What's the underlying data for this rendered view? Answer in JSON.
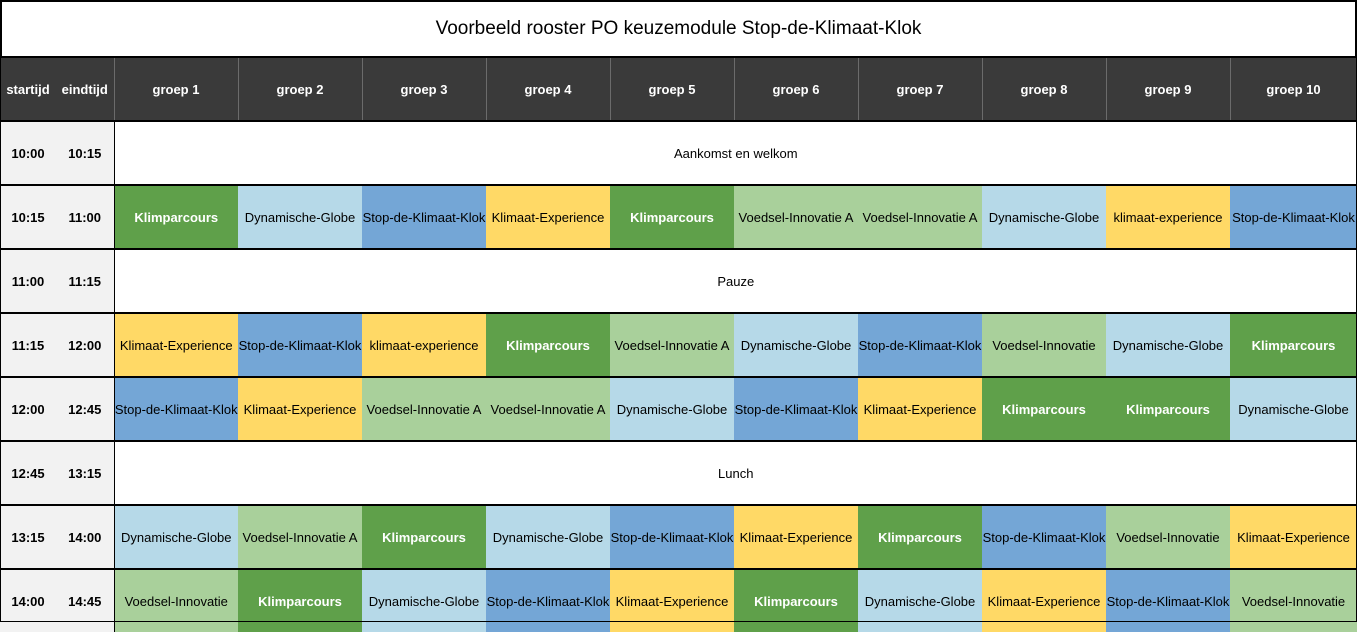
{
  "title": "Voorbeeld rooster PO keuzemodule  Stop-de-Klimaat-Klok",
  "colors": {
    "header_bg": "#3a3a3a",
    "time_bg": "#f2f2f2",
    "Klimparcours": "#5fa04a",
    "Dynamische-Globe": "#b6d9e8",
    "Stop-de-Klimaat-Klok": "#74a6d6",
    "Klimaat-Experience": "#ffd966",
    "Voedsel-Innovatie": "#a9d09b"
  },
  "header": {
    "start": "startijd",
    "end": "eindtijd",
    "groups": [
      "groep 1",
      "groep 2",
      "groep 3",
      "groep 4",
      "groep 5",
      "groep 6",
      "groep 7",
      "groep 8",
      "groep 9",
      "groep 10"
    ]
  },
  "rows": [
    {
      "start": "10:00",
      "end": "10:15",
      "span": "Aankomst en welkom"
    },
    {
      "start": "10:15",
      "end": "11:00",
      "cells": [
        {
          "text": "Klimparcours",
          "kind": "klim"
        },
        {
          "text": "Dynamische-Globe",
          "kind": "globe"
        },
        {
          "text": "Stop-de-Klimaat-Klok",
          "kind": "stop"
        },
        {
          "text": "Klimaat-Experience",
          "kind": "exp"
        },
        {
          "text": "Klimparcours",
          "kind": "klim"
        },
        {
          "text": "Voedsel-Innovatie  A",
          "kind": "voed"
        },
        {
          "text": "Voedsel-Innovatie  A",
          "kind": "voed"
        },
        {
          "text": "Dynamische-Globe",
          "kind": "globe"
        },
        {
          "text": "klimaat-experience",
          "kind": "exp"
        },
        {
          "text": "Stop-de-Klimaat-Klok",
          "kind": "stop"
        }
      ]
    },
    {
      "start": "11:00",
      "end": "11:15",
      "span": "Pauze"
    },
    {
      "start": "11:15",
      "end": "12:00",
      "cells": [
        {
          "text": "Klimaat-Experience",
          "kind": "exp"
        },
        {
          "text": "Stop-de-Klimaat-Klok",
          "kind": "stop"
        },
        {
          "text": "klimaat-experience",
          "kind": "exp"
        },
        {
          "text": "Klimparcours",
          "kind": "klim"
        },
        {
          "text": "Voedsel-Innovatie A",
          "kind": "voed"
        },
        {
          "text": "Dynamische-Globe",
          "kind": "globe"
        },
        {
          "text": "Stop-de-Klimaat-Klok",
          "kind": "stop"
        },
        {
          "text": "Voedsel-Innovatie",
          "kind": "voed"
        },
        {
          "text": "Dynamische-Globe",
          "kind": "globe"
        },
        {
          "text": "Klimparcours",
          "kind": "klim"
        }
      ]
    },
    {
      "start": "12:00",
      "end": "12:45",
      "cells": [
        {
          "text": "Stop-de-Klimaat-Klok",
          "kind": "stop"
        },
        {
          "text": "Klimaat-Experience",
          "kind": "exp"
        },
        {
          "text": "Voedsel-Innovatie A",
          "kind": "voed"
        },
        {
          "text": "Voedsel-Innovatie A",
          "kind": "voed"
        },
        {
          "text": "Dynamische-Globe",
          "kind": "globe"
        },
        {
          "text": "Stop-de-Klimaat-Klok",
          "kind": "stop"
        },
        {
          "text": "Klimaat-Experience",
          "kind": "exp"
        },
        {
          "text": "Klimparcours",
          "kind": "klim"
        },
        {
          "text": "Klimparcours",
          "kind": "klim"
        },
        {
          "text": "Dynamische-Globe",
          "kind": "globe"
        }
      ]
    },
    {
      "start": "12:45",
      "end": "13:15",
      "span": "Lunch"
    },
    {
      "start": "13:15",
      "end": "14:00",
      "cells": [
        {
          "text": "Dynamische-Globe",
          "kind": "globe"
        },
        {
          "text": "Voedsel-Innovatie A",
          "kind": "voed"
        },
        {
          "text": "Klimparcours",
          "kind": "klim"
        },
        {
          "text": "Dynamische-Globe",
          "kind": "globe"
        },
        {
          "text": "Stop-de-Klimaat-Klok",
          "kind": "stop"
        },
        {
          "text": "Klimaat-Experience",
          "kind": "exp"
        },
        {
          "text": "Klimparcours",
          "kind": "klim"
        },
        {
          "text": "Stop-de-Klimaat-Klok",
          "kind": "stop"
        },
        {
          "text": "Voedsel-Innovatie",
          "kind": "voed"
        },
        {
          "text": "Klimaat-Experience",
          "kind": "exp"
        }
      ]
    },
    {
      "start": "14:00",
      "end": "14:45",
      "cells": [
        {
          "text": "Voedsel-Innovatie",
          "kind": "voed"
        },
        {
          "text": "Klimparcours",
          "kind": "klim"
        },
        {
          "text": "Dynamische-Globe",
          "kind": "globe"
        },
        {
          "text": "Stop-de-Klimaat-Klok",
          "kind": "stop"
        },
        {
          "text": "Klimaat-Experience",
          "kind": "exp"
        },
        {
          "text": "Klimparcours",
          "kind": "klim"
        },
        {
          "text": "Dynamische-Globe",
          "kind": "globe"
        },
        {
          "text": "Klimaat-Experience",
          "kind": "exp"
        },
        {
          "text": "Stop-de-Klimaat-Klok",
          "kind": "stop"
        },
        {
          "text": "Voedsel-Innovatie",
          "kind": "voed"
        }
      ]
    }
  ]
}
